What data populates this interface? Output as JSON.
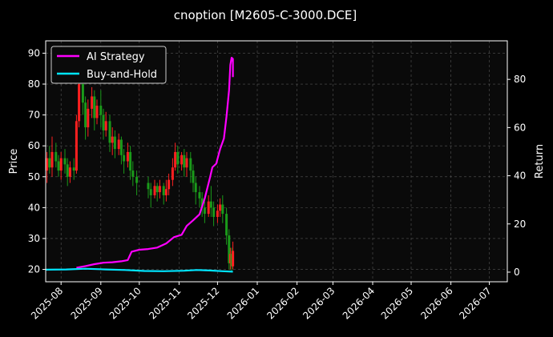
{
  "chart_data": {
    "type": "line",
    "title": "cnoption [M2605-C-3000.DCE]",
    "ylabel_left": "Price",
    "ylabel_right": "Return",
    "xlabel": "",
    "x_ticks": [
      "2025-08",
      "2025-09",
      "2025-10",
      "2025-11",
      "2025-12",
      "2026-01",
      "2026-02",
      "2026-03",
      "2026-04",
      "2026-05",
      "2026-06",
      "2026-07"
    ],
    "x_range": [
      "2025-07-20",
      "2026-07-15"
    ],
    "y_left_ticks": [
      20,
      30,
      40,
      50,
      60,
      70,
      80,
      90
    ],
    "y_left_range": [
      16,
      94
    ],
    "y_right_ticks": [
      0,
      20,
      40,
      60,
      80
    ],
    "y_right_range": [
      -4,
      96
    ],
    "grid": true,
    "legend_position": "top-left",
    "colors": {
      "background": "#000000",
      "up": "#ff2020",
      "down": "#1a9a1a",
      "strategy": "#ff00ff",
      "hold": "#00e5ff",
      "grid": "#555555"
    },
    "series": [
      {
        "name": "AI Strategy",
        "axis": "right",
        "points": [
          [
            "2025-08-13",
            1.8
          ],
          [
            "2025-08-20",
            2.5
          ],
          [
            "2025-08-27",
            3.3
          ],
          [
            "2025-09-03",
            3.9
          ],
          [
            "2025-09-10",
            4.1
          ],
          [
            "2025-09-17",
            4.5
          ],
          [
            "2025-09-22",
            5.0
          ],
          [
            "2025-09-25",
            8.5
          ],
          [
            "2025-10-01",
            9.3
          ],
          [
            "2025-10-08",
            9.6
          ],
          [
            "2025-10-15",
            10.2
          ],
          [
            "2025-10-22",
            11.9
          ],
          [
            "2025-10-28",
            14.5
          ],
          [
            "2025-11-03",
            15.5
          ],
          [
            "2025-11-07",
            19.2
          ],
          [
            "2025-11-12",
            21.5
          ],
          [
            "2025-11-17",
            24.0
          ],
          [
            "2025-11-21",
            30.5
          ],
          [
            "2025-11-25",
            39.0
          ],
          [
            "2025-11-27",
            43.5
          ],
          [
            "2025-11-30",
            45.0
          ],
          [
            "2025-12-03",
            51.0
          ],
          [
            "2025-12-06",
            55.5
          ],
          [
            "2025-12-08",
            64.5
          ],
          [
            "2025-12-10",
            75.5
          ],
          [
            "2025-12-11",
            86.0
          ],
          [
            "2025-12-12",
            89.0
          ],
          [
            "2025-12-13",
            88.5
          ],
          [
            "2025-12-13",
            81.0
          ]
        ]
      },
      {
        "name": "Buy-and-Hold",
        "axis": "right",
        "points": [
          [
            "2025-07-20",
            1.0
          ],
          [
            "2025-08-05",
            1.1
          ],
          [
            "2025-08-20",
            1.4
          ],
          [
            "2025-09-05",
            1.1
          ],
          [
            "2025-09-20",
            0.9
          ],
          [
            "2025-10-05",
            0.5
          ],
          [
            "2025-10-20",
            0.4
          ],
          [
            "2025-11-05",
            0.6
          ],
          [
            "2025-11-15",
            0.9
          ],
          [
            "2025-11-25",
            0.7
          ],
          [
            "2025-12-05",
            0.4
          ],
          [
            "2025-12-13",
            0.2
          ]
        ]
      }
    ],
    "candles": [
      [
        "2025-07-21",
        52,
        56,
        48,
        58
      ],
      [
        "2025-07-23",
        56,
        53,
        51,
        60
      ],
      [
        "2025-07-25",
        53,
        58,
        50,
        63
      ],
      [
        "2025-07-28",
        58,
        55,
        53,
        61
      ],
      [
        "2025-07-30",
        55,
        52,
        50,
        57
      ],
      [
        "2025-08-01",
        52,
        56,
        49,
        58
      ],
      [
        "2025-08-04",
        56,
        54,
        51,
        59
      ],
      [
        "2025-08-06",
        54,
        50,
        47,
        56
      ],
      [
        "2025-08-08",
        50,
        53,
        48,
        55
      ],
      [
        "2025-08-11",
        53,
        52,
        49,
        56
      ],
      [
        "2025-08-13",
        52,
        68,
        51,
        70
      ],
      [
        "2025-08-15",
        68,
        80,
        66,
        83
      ],
      [
        "2025-08-18",
        80,
        74,
        70,
        84
      ],
      [
        "2025-08-20",
        74,
        66,
        62,
        76
      ],
      [
        "2025-08-22",
        66,
        72,
        63,
        75
      ],
      [
        "2025-08-25",
        72,
        76,
        69,
        79
      ],
      [
        "2025-08-27",
        76,
        69,
        65,
        78
      ],
      [
        "2025-08-29",
        69,
        73,
        67,
        75
      ],
      [
        "2025-09-01",
        73,
        70,
        66,
        78
      ],
      [
        "2025-09-03",
        70,
        65,
        62,
        72
      ],
      [
        "2025-09-05",
        65,
        68,
        63,
        71
      ],
      [
        "2025-09-08",
        68,
        61,
        58,
        70
      ],
      [
        "2025-09-10",
        61,
        63,
        57,
        66
      ],
      [
        "2025-09-12",
        63,
        59,
        56,
        65
      ],
      [
        "2025-09-15",
        59,
        62,
        57,
        64
      ],
      [
        "2025-09-17",
        62,
        57,
        54,
        63
      ],
      [
        "2025-09-19",
        57,
        55,
        51,
        59
      ],
      [
        "2025-09-22",
        55,
        58,
        53,
        61
      ],
      [
        "2025-09-24",
        58,
        52,
        49,
        60
      ],
      [
        "2025-09-26",
        52,
        50,
        47,
        55
      ],
      [
        "2025-09-29",
        50,
        48,
        44,
        52
      ],
      [
        "2025-10-08",
        48,
        46,
        43,
        50
      ],
      [
        "2025-10-10",
        46,
        44,
        40,
        48
      ],
      [
        "2025-10-13",
        44,
        47,
        43,
        49
      ],
      [
        "2025-10-15",
        47,
        45,
        42,
        48
      ],
      [
        "2025-10-17",
        45,
        47,
        43,
        49
      ],
      [
        "2025-10-20",
        47,
        44,
        41,
        48
      ],
      [
        "2025-10-22",
        44,
        46,
        42,
        49
      ],
      [
        "2025-10-24",
        46,
        49,
        44,
        51
      ],
      [
        "2025-10-27",
        49,
        53,
        47,
        56
      ],
      [
        "2025-10-29",
        53,
        58,
        52,
        61
      ],
      [
        "2025-10-31",
        58,
        54,
        51,
        60
      ],
      [
        "2025-11-03",
        54,
        57,
        52,
        58
      ],
      [
        "2025-11-05",
        57,
        53,
        50,
        59
      ],
      [
        "2025-11-07",
        53,
        56,
        50,
        58
      ],
      [
        "2025-11-10",
        56,
        52,
        48,
        58
      ],
      [
        "2025-11-12",
        52,
        48,
        45,
        54
      ],
      [
        "2025-11-14",
        48,
        45,
        41,
        50
      ],
      [
        "2025-11-17",
        45,
        43,
        40,
        47
      ],
      [
        "2025-11-19",
        43,
        40,
        37,
        45
      ],
      [
        "2025-11-21",
        40,
        38,
        35,
        42
      ],
      [
        "2025-11-24",
        38,
        42,
        37,
        44
      ],
      [
        "2025-11-26",
        42,
        40,
        37,
        47
      ],
      [
        "2025-11-28",
        40,
        37,
        34,
        42
      ],
      [
        "2025-12-01",
        37,
        39,
        35,
        41
      ],
      [
        "2025-12-03",
        39,
        41,
        37,
        43
      ],
      [
        "2025-12-05",
        41,
        38,
        35,
        44
      ],
      [
        "2025-12-08",
        38,
        31,
        28,
        40
      ],
      [
        "2025-12-10",
        31,
        22,
        20,
        33
      ],
      [
        "2025-12-11",
        22,
        25,
        20,
        27
      ],
      [
        "2025-12-12",
        25,
        21,
        19,
        27
      ],
      [
        "2025-12-13",
        21,
        26,
        20,
        29
      ]
    ]
  }
}
